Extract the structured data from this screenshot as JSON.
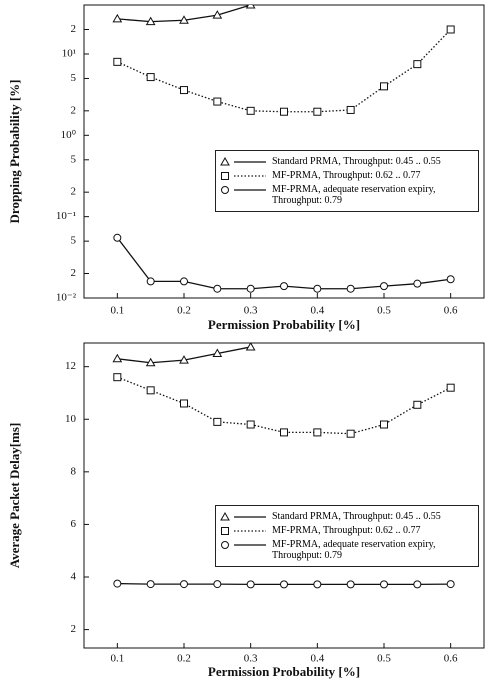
{
  "chart_data": [
    {
      "type": "line",
      "y_label": "Dropping Probability [%]",
      "x_label": "Permission Probability [%]",
      "log_y": true,
      "legend": "right",
      "x": [
        0.1,
        0.15,
        0.2,
        0.25,
        0.3,
        0.35,
        0.4,
        0.45,
        0.5,
        0.55,
        0.6
      ],
      "xlim": [
        0.05,
        0.65
      ],
      "xticks": [
        0.1,
        0.2,
        0.3,
        0.4,
        0.5,
        0.6
      ],
      "ylim": [
        0.01,
        40
      ],
      "yticks": [
        {
          "value": 0.01,
          "label": "10⁻²"
        },
        {
          "value": 0.02,
          "label": "2"
        },
        {
          "value": 0.05,
          "label": "5"
        },
        {
          "value": 0.1,
          "label": "10⁻¹"
        },
        {
          "value": 0.2,
          "label": "2"
        },
        {
          "value": 0.5,
          "label": "5"
        },
        {
          "value": 1,
          "label": "10⁰"
        },
        {
          "value": 2,
          "label": "2"
        },
        5,
        {
          "value": 10,
          "label": "10¹"
        },
        {
          "value": 20,
          "label": "2"
        }
      ],
      "series": [
        {
          "name": "Standard PRMA, Throughput: 0.45 .. 0.55",
          "color": "#111",
          "marker": "triangle",
          "line_style": "solid",
          "values": [
            27,
            25,
            26,
            30,
            40,
            null,
            null,
            null,
            null,
            null,
            null
          ]
        },
        {
          "name": "MF-PRMA, Throughput: 0.62 .. 0.77",
          "color": "#111",
          "marker": "square",
          "line_style": "dotted",
          "values": [
            8,
            5.2,
            3.6,
            2.6,
            2.0,
            1.95,
            1.95,
            2.05,
            4,
            7.5,
            20
          ]
        },
        {
          "name": "MF-PRMA, adequate reservation expiry, Throughput: 0.79",
          "color": "#111",
          "marker": "circle",
          "line_style": "solid",
          "values": [
            0.055,
            0.016,
            0.016,
            0.013,
            0.013,
            0.014,
            0.013,
            0.013,
            0.014,
            0.015,
            0.017
          ]
        }
      ]
    },
    {
      "type": "line",
      "y_label": "Average Packet Delay[ms]",
      "x_label": "Permission Probability [%]",
      "log_y": false,
      "legend": "right",
      "x": [
        0.1,
        0.15,
        0.2,
        0.25,
        0.3,
        0.35,
        0.4,
        0.45,
        0.5,
        0.55,
        0.6
      ],
      "xlim": [
        0.05,
        0.65
      ],
      "xticks": [
        0.1,
        0.2,
        0.3,
        0.4,
        0.5,
        0.6
      ],
      "ylim": [
        1.3,
        12.9
      ],
      "yticks": [
        2,
        4,
        6,
        8,
        10,
        12
      ],
      "series": [
        {
          "name": "Standard PRMA, Throughput: 0.45 .. 0.55",
          "color": "#111",
          "marker": "triangle",
          "line_style": "solid",
          "values": [
            12.3,
            12.15,
            12.25,
            12.5,
            12.75,
            null,
            null,
            null,
            null,
            null,
            null
          ]
        },
        {
          "name": "MF-PRMA, Throughput: 0.62 .. 0.77",
          "color": "#111",
          "marker": "square",
          "line_style": "dotted",
          "values": [
            11.6,
            11.1,
            10.6,
            9.9,
            9.8,
            9.5,
            9.5,
            9.45,
            9.8,
            10.55,
            11.2
          ]
        },
        {
          "name": "MF-PRMA, adequate reservation expiry, Throughput: 0.79",
          "color": "#111",
          "marker": "circle",
          "line_style": "solid",
          "values": [
            3.75,
            3.73,
            3.73,
            3.73,
            3.72,
            3.72,
            3.72,
            3.72,
            3.72,
            3.72,
            3.73
          ]
        }
      ]
    }
  ]
}
